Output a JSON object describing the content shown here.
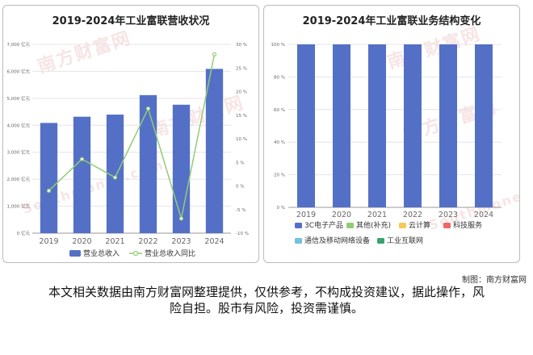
{
  "credit": "制图：南方财富网",
  "disclaimer": "本文相关数据由南方财富网整理提供，仅供参考，不构成投资建议，据此操作，风险自担。股市有风险，投资需谨慎。",
  "watermark": {
    "text": "南方财富网",
    "latin": "Southmoney.com"
  },
  "chart_data": [
    {
      "type": "bar",
      "title": "2019-2024年工业富联营收状况",
      "categories": [
        "2019",
        "2020",
        "2021",
        "2022",
        "2023",
        "2024"
      ],
      "y_ticks": [
        "0 亿元",
        "1,000 亿元",
        "2,000 亿元",
        "3,000 亿元",
        "4,000 亿元",
        "5,000 亿元",
        "6,000 亿元",
        "7,000 亿元"
      ],
      "y2_ticks": [
        "-10 %",
        "-5 %",
        "0 %",
        "5 %",
        "10 %",
        "15 %",
        "20 %",
        "25 %",
        "30 %"
      ],
      "ylim": [
        0,
        7000
      ],
      "y2lim": [
        -10,
        30
      ],
      "series": [
        {
          "name": "营业总收入",
          "type": "bar",
          "color": "#5470c6",
          "values": [
            4087,
            4318,
            4396,
            5118,
            4763,
            6091
          ]
        },
        {
          "name": "营业总收入同比",
          "type": "line",
          "color": "#91cc75",
          "values": [
            -1.0,
            5.7,
            1.8,
            16.4,
            -6.9,
            27.9
          ]
        }
      ],
      "legend_position": "bottom"
    },
    {
      "type": "bar",
      "title": "2019-2024年工业富联业务结构变化",
      "categories": [
        "2019",
        "2020",
        "2021",
        "2022",
        "2023",
        "2024"
      ],
      "y_ticks": [
        "0 %",
        "20 %",
        "40 %",
        "60 %",
        "80 %",
        "100 %"
      ],
      "ylim": [
        0,
        100
      ],
      "stacked": true,
      "series": [
        {
          "name": "3C电子产品",
          "color": "#5470c6",
          "values": [
            100,
            100,
            100,
            100,
            100,
            100
          ]
        },
        {
          "name": "其他(补充)",
          "color": "#91cc75",
          "values": [
            0,
            0,
            0,
            0,
            0,
            0
          ]
        },
        {
          "name": "云计算",
          "color": "#fac858",
          "values": [
            0,
            0,
            0,
            0,
            0,
            0
          ]
        },
        {
          "name": "科技服务",
          "color": "#ee6666",
          "values": [
            0,
            0,
            0,
            0,
            0,
            0
          ]
        },
        {
          "name": "通信及移动网络设备",
          "color": "#73c0de",
          "values": [
            0,
            0,
            0,
            0,
            0,
            0
          ]
        },
        {
          "name": "工业互联网",
          "color": "#3ba272",
          "values": [
            0,
            0,
            0,
            0,
            0,
            0
          ]
        }
      ],
      "legend_position": "bottom"
    }
  ]
}
